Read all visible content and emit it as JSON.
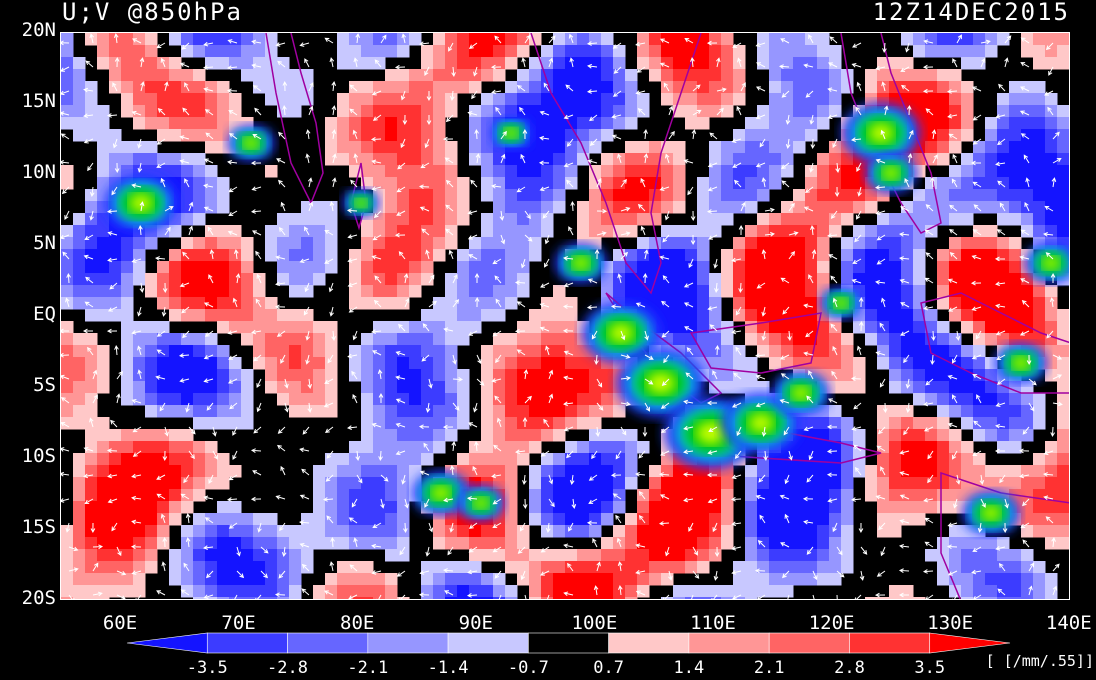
{
  "header": {
    "title_left": "U;V @850hPa",
    "title_right": "12Z14DEC2015"
  },
  "axes": {
    "lat_labels": [
      "20N",
      "15N",
      "10N",
      "5N",
      "EQ",
      "5S",
      "10S",
      "15S",
      "20S"
    ],
    "lon_labels": [
      "60E",
      "70E",
      "80E",
      "90E",
      "100E",
      "110E",
      "120E",
      "130E",
      "140E"
    ]
  },
  "colorbar": {
    "labels": [
      "-3.5",
      "-2.8",
      "-2.1",
      "-1.4",
      "-0.7",
      "0.7",
      "1.4",
      "2.1",
      "2.8",
      "3.5"
    ],
    "colors": [
      "#1414ff",
      "#3c3cff",
      "#6666ff",
      "#9696ff",
      "#c8c8ff",
      "#000000",
      "#ffc8c8",
      "#ff9696",
      "#ff6464",
      "#ff3232",
      "#ff0000"
    ],
    "units": "[ [/mm/.55]]"
  },
  "map": {
    "lon_range": [
      55,
      140
    ],
    "lat_range": [
      -20,
      20
    ]
  }
}
